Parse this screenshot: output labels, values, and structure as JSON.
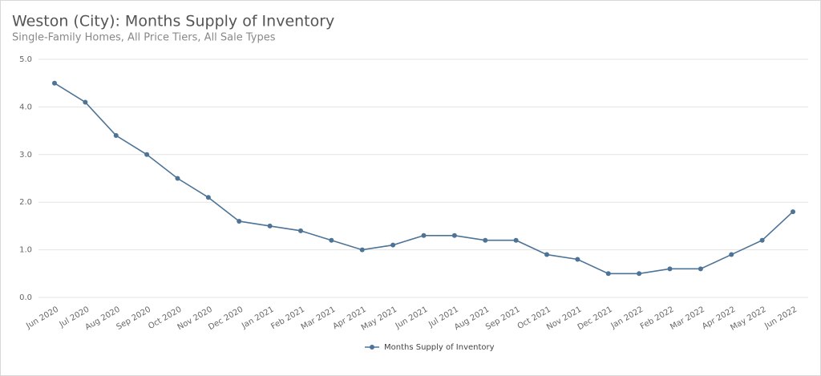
{
  "chart_data": {
    "type": "line",
    "title": "Weston (City): Months Supply of Inventory",
    "subtitle": "Single-Family Homes, All Price Tiers, All Sale Types",
    "categories": [
      "Jun 2020",
      "Jul 2020",
      "Aug 2020",
      "Sep 2020",
      "Oct 2020",
      "Nov 2020",
      "Dec 2020",
      "Jan 2021",
      "Feb 2021",
      "Mar 2021",
      "Apr 2021",
      "May 2021",
      "Jun 2021",
      "Jul 2021",
      "Aug 2021",
      "Sep 2021",
      "Oct 2021",
      "Nov 2021",
      "Dec 2021",
      "Jan 2022",
      "Feb 2022",
      "Mar 2022",
      "Apr 2022",
      "May 2022",
      "Jun 2022"
    ],
    "series": [
      {
        "name": "Months Supply of Inventory",
        "color": "#4d7396",
        "values": [
          4.5,
          4.1,
          3.4,
          3.0,
          2.5,
          2.1,
          1.6,
          1.5,
          1.4,
          1.2,
          1.0,
          1.1,
          1.3,
          1.3,
          1.2,
          1.2,
          0.9,
          0.8,
          0.5,
          0.5,
          0.6,
          0.6,
          0.9,
          1.2,
          1.8
        ]
      }
    ],
    "ylim": [
      0,
      5
    ],
    "yticks": [
      {
        "value": 0,
        "label": "0.0"
      },
      {
        "value": 1,
        "label": "1.0"
      },
      {
        "value": 2,
        "label": "2.0"
      },
      {
        "value": 3,
        "label": "3.0"
      },
      {
        "value": 4,
        "label": "4.0"
      },
      {
        "value": 5,
        "label": "5.0"
      }
    ],
    "grid": true,
    "legend": "bottom"
  }
}
